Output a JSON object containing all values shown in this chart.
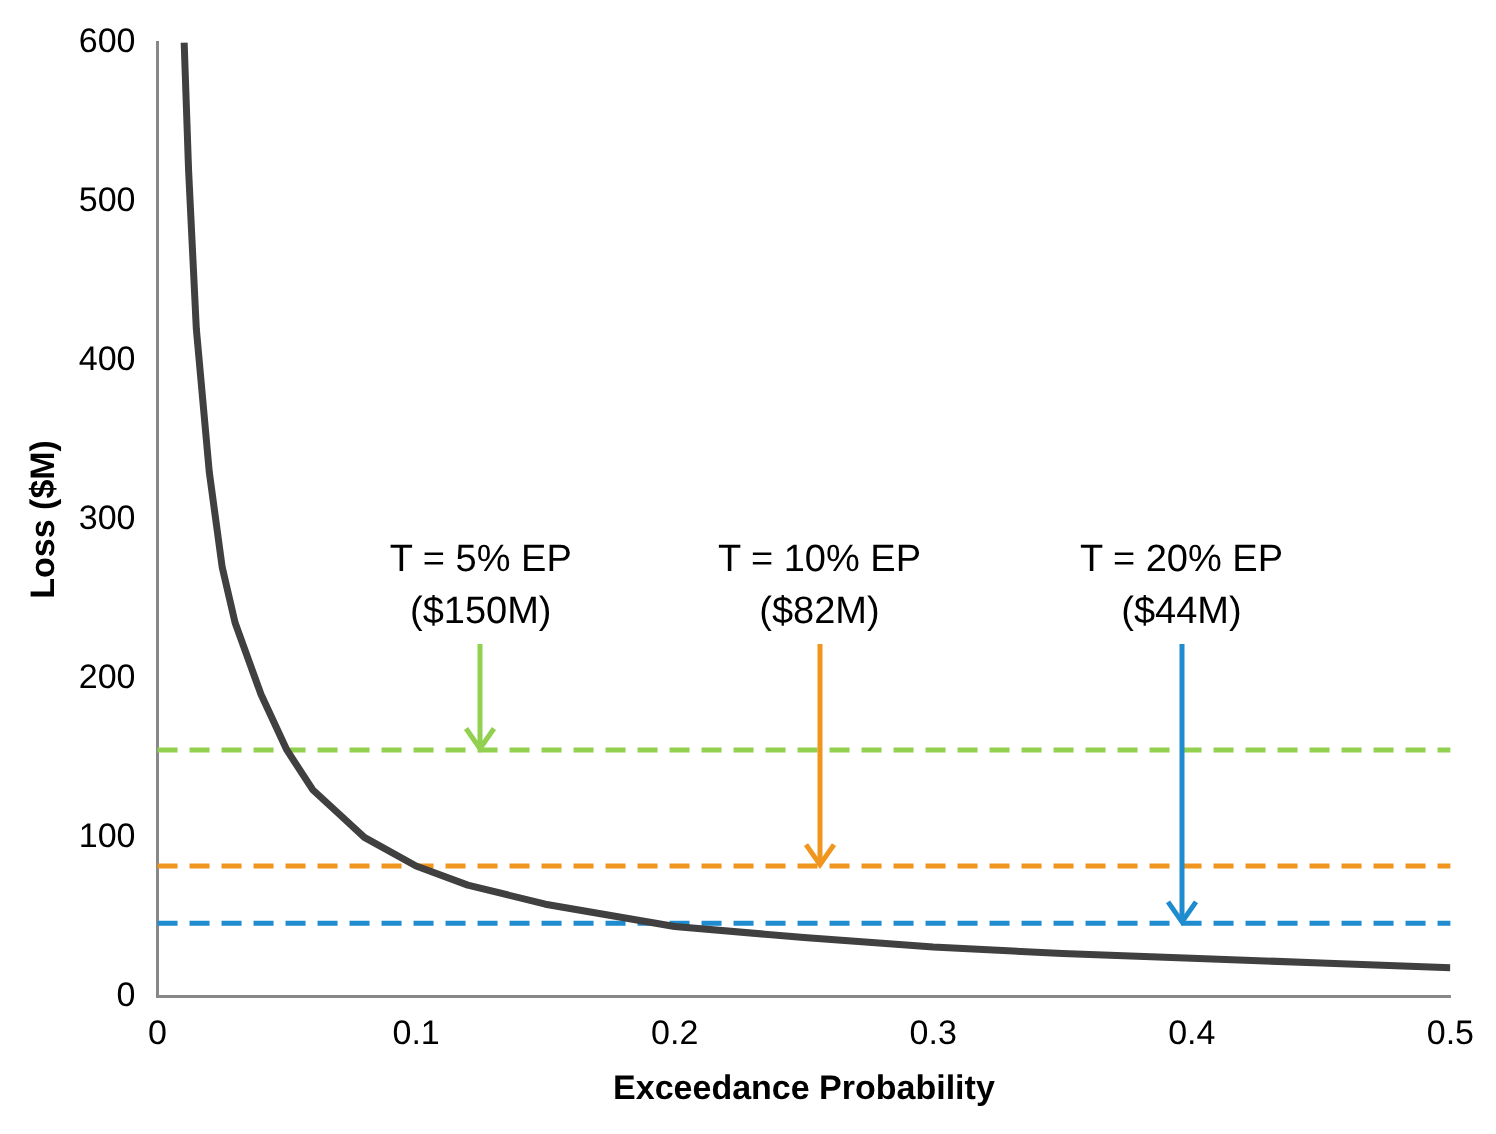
{
  "chart_data": {
    "type": "line",
    "xlabel": "Exceedance Probability",
    "ylabel": "Loss ($M)",
    "x": [
      0.0103,
      0.012,
      0.015,
      0.02,
      0.025,
      0.03,
      0.04,
      0.05,
      0.06,
      0.07,
      0.08,
      0.1,
      0.12,
      0.15,
      0.2,
      0.25,
      0.3,
      0.35,
      0.4,
      0.45,
      0.5
    ],
    "series": [
      {
        "color": "#404040",
        "values": [
          600,
          520,
          420,
          330,
          270,
          235,
          190,
          155,
          130,
          115,
          100,
          82,
          70,
          58,
          44,
          37,
          31,
          27,
          24,
          21,
          18
        ]
      }
    ],
    "xlim": [
      0,
      0.5
    ],
    "xticks": [
      0,
      0.1,
      0.2,
      0.3,
      0.4,
      0.5
    ],
    "ylim": [
      0,
      600
    ],
    "yticks": [
      0,
      100,
      200,
      300,
      400,
      500,
      600
    ],
    "grid": false,
    "legend": false,
    "marker": "none",
    "line_style": "solid",
    "ref_lines": [
      {
        "axis": "y",
        "value": 155,
        "color": "#92d050",
        "line_style": "dashed"
      },
      {
        "axis": "y",
        "value": 82,
        "color": "#f0961e",
        "line_style": "dashed"
      },
      {
        "axis": "y",
        "value": 46,
        "color": "#1f8ccf",
        "line_style": "dashed"
      }
    ],
    "annotations": [
      {
        "text": "T = 5% EP\n($150M)",
        "x": 0.125,
        "y": 155
      },
      {
        "text": "T = 10% EP\n($82M)",
        "x": 0.256,
        "y": 82
      },
      {
        "text": "T = 20% EP\n($44M)",
        "x": 0.396,
        "y": 46
      }
    ]
  }
}
